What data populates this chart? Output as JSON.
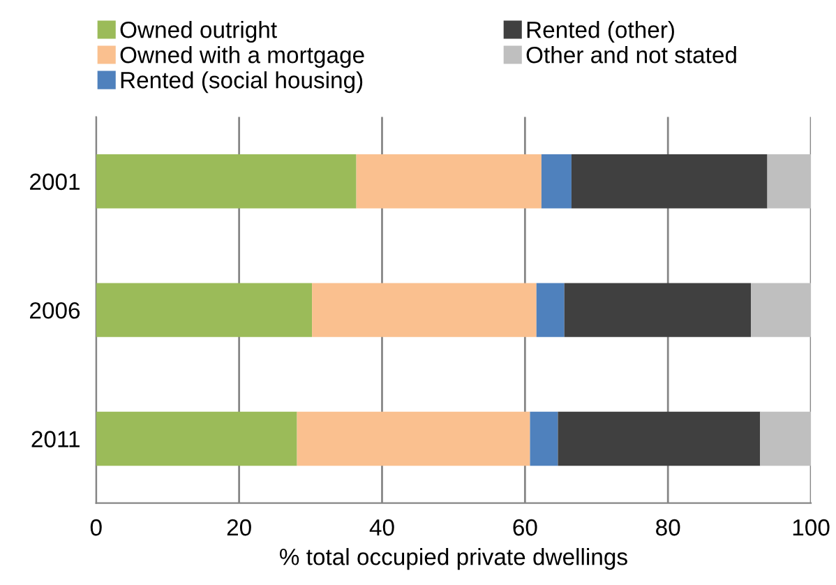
{
  "chart_data": {
    "type": "bar",
    "orientation": "horizontal",
    "stacked": true,
    "xlabel": "% total occupied private dwellings",
    "categories": [
      "2001",
      "2006",
      "2011"
    ],
    "series": [
      {
        "name": "Owned outright",
        "color": "#9bbb59",
        "values": [
          36.4,
          30.2,
          28.1
        ]
      },
      {
        "name": "Owned with a mortgage",
        "color": "#fac08f",
        "values": [
          25.9,
          31.4,
          32.6
        ]
      },
      {
        "name": "Rented (social housing)",
        "color": "#4f81bd",
        "values": [
          4.2,
          3.9,
          3.9
        ]
      },
      {
        "name": "Rented (other)",
        "color": "#404040",
        "values": [
          27.4,
          26.1,
          28.3
        ]
      },
      {
        "name": "Other and not stated",
        "color": "#bfbfbf",
        "values": [
          6.1,
          8.4,
          7.1
        ]
      }
    ],
    "xlim": [
      0,
      100
    ],
    "xticks": [
      0,
      20,
      40,
      60,
      80,
      100
    ],
    "grid": "x",
    "legend": "top"
  }
}
